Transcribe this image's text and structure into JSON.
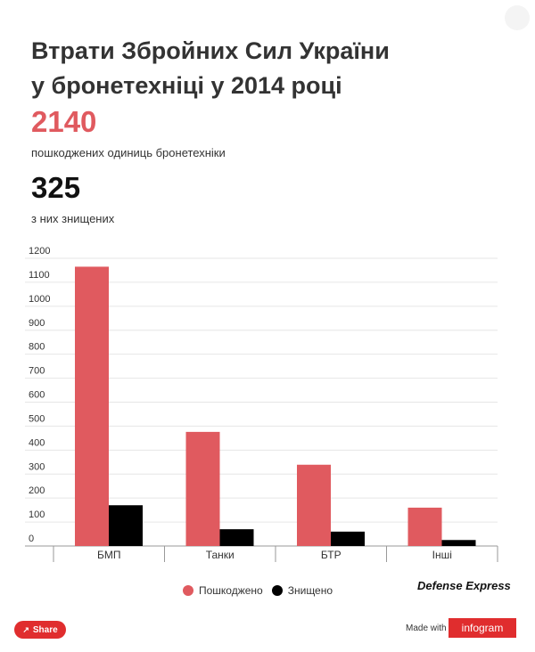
{
  "header": {
    "title": "Втрати Збройних Сил України у бронетехніці у 2014 році",
    "stat1_value": "2140",
    "stat1_label": "пошкоджених одиниць бронетехніки",
    "stat2_value": "325",
    "stat2_label": "з них знищених"
  },
  "chart_data": {
    "type": "bar",
    "categories": [
      "БМП",
      "Танки",
      "БТР",
      "Інші"
    ],
    "series": [
      {
        "name": "Пошкоджено",
        "color": "#e05a5f",
        "values": [
          1165,
          476,
          339,
          160
        ]
      },
      {
        "name": "Знищено",
        "color": "#000000",
        "values": [
          170,
          70,
          60,
          25
        ]
      }
    ],
    "ylim": [
      0,
      1200
    ],
    "yticks": [
      0,
      100,
      200,
      300,
      400,
      500,
      600,
      700,
      800,
      900,
      1000,
      1100,
      1200
    ],
    "grid": true,
    "legend_position": "bottom"
  },
  "footer": {
    "brand": "Defense Express",
    "share_label": "Share",
    "made_with": "Made with",
    "infogram_label": "infogram"
  }
}
